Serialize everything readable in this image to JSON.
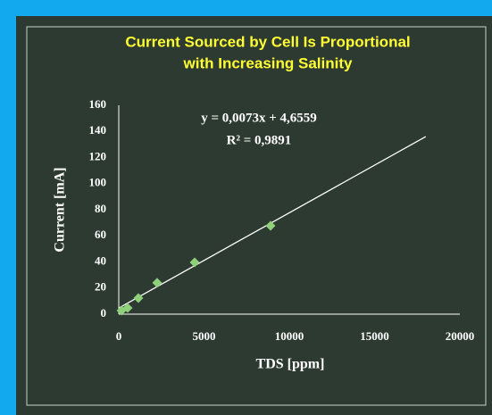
{
  "chart_data": {
    "type": "scatter",
    "title": [
      "Current Sourced by Cell Is Proportional",
      "with Increasing Salinity"
    ],
    "x_label": "TDS [ppm]",
    "y_label": "Current [mA]",
    "annotations": [
      "y = 0,0073x + 4,6559",
      "R² = 0,9891"
    ],
    "series": [
      {
        "name": "Current",
        "color": "#8fd17a",
        "x": [
          160,
          520,
          1150,
          2250,
          4450,
          8900
        ],
        "values": [
          2.7,
          4.8,
          12.3,
          24,
          39.7,
          67.7
        ]
      }
    ],
    "trendline": {
      "color": "#ffffff",
      "x": [
        0,
        18000
      ],
      "values": [
        4.6559,
        136.06
      ]
    },
    "xlim": [
      0,
      20000
    ],
    "xticks": [
      0,
      5000,
      10000,
      15000,
      20000
    ],
    "ylim": [
      0,
      160
    ],
    "yticks": [
      0,
      20,
      40,
      60,
      80,
      100,
      120,
      140,
      160
    ],
    "grid": false
  }
}
